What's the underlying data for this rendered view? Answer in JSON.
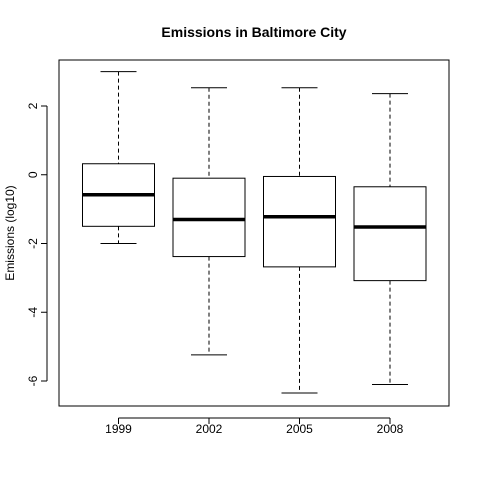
{
  "chart_data": {
    "type": "boxplot",
    "title": "Emissions in Baltimore City",
    "xlabel": "",
    "ylabel": "Emissions (log10)",
    "ylim": [
      -6.8,
      3.4
    ],
    "yticks": [
      2,
      0,
      -2,
      -4,
      -6
    ],
    "categories": [
      "1999",
      "2002",
      "2005",
      "2008"
    ],
    "boxes": [
      {
        "category": "1999",
        "min": -2.0,
        "q1": -1.5,
        "median": -0.58,
        "q3": 0.32,
        "max": 3.0
      },
      {
        "category": "2002",
        "min": -5.24,
        "q1": -2.38,
        "median": -1.3,
        "q3": -0.1,
        "max": 2.53
      },
      {
        "category": "2005",
        "min": -6.35,
        "q1": -2.68,
        "median": -1.22,
        "q3": -0.05,
        "max": 2.53
      },
      {
        "category": "2008",
        "min": -6.1,
        "q1": -3.08,
        "median": -1.52,
        "q3": -0.35,
        "max": 2.36
      }
    ],
    "grid": false,
    "legend": "none"
  }
}
